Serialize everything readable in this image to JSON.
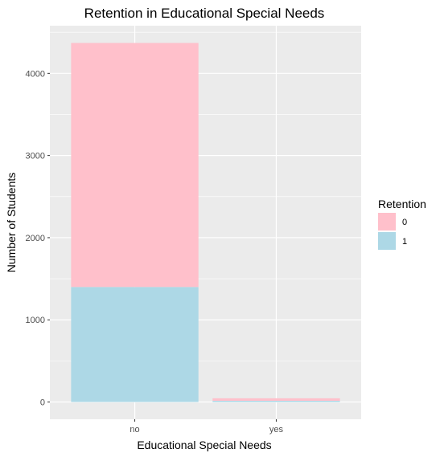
{
  "chart_data": {
    "type": "bar",
    "stacked": true,
    "title": "Retention in Educational Special Needs",
    "xlabel": "Educational Special Needs",
    "ylabel": "Number of Students",
    "categories": [
      "no",
      "yes"
    ],
    "series": [
      {
        "name": "0",
        "values": [
          2970,
          30
        ],
        "color": "#FFC0CB"
      },
      {
        "name": "1",
        "values": [
          1400,
          15
        ],
        "color": "#ADD8E6"
      }
    ],
    "ylim": [
      -210,
      4580
    ],
    "yticks": [
      0,
      1000,
      2000,
      3000,
      4000
    ],
    "ytick_labels": [
      "0",
      "1000",
      "2000",
      "3000",
      "4000"
    ],
    "grid": true,
    "panel_background": "#EBEBEB",
    "legend": {
      "title": "Retention",
      "position": "right",
      "entries": [
        "0",
        "1"
      ]
    }
  }
}
